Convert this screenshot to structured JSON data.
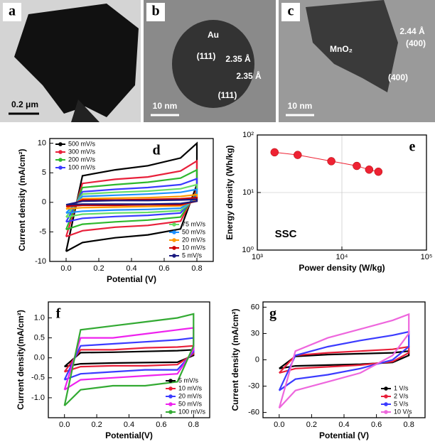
{
  "images": [
    {
      "label": "a",
      "scale_bar": "0.2 μm"
    },
    {
      "label": "b",
      "annotations": [
        "Au",
        "(111)",
        "2.35 Å",
        "2.35 Å",
        "(111)"
      ],
      "scale_bar": "10 nm"
    },
    {
      "label": "c",
      "annotations": [
        "MnO₂",
        "2.44 Å",
        "(400)",
        "(400)"
      ],
      "scale_bar": "10 nm"
    }
  ],
  "chart_data": [
    {
      "type": "line",
      "panel_label": "d",
      "xlabel": "Potential (V)",
      "ylabel": "Current density (mA/cm²)",
      "x": [
        0,
        0.1,
        0.3,
        0.5,
        0.7,
        0.8,
        0.8,
        0.7,
        0.5,
        0.3,
        0.1,
        0
      ],
      "xlim": [
        -0.1,
        0.9
      ],
      "xticks": [
        {
          "value": 0,
          "label": "0.0"
        },
        0.2,
        0.4,
        0.6,
        0.8
      ],
      "ylim": [
        -10,
        10.8
      ],
      "yticks": [
        -10,
        -5,
        0,
        5,
        10
      ],
      "series": [
        {
          "name": "500 mV/s",
          "color": "#000000",
          "legend": "upper left",
          "values": [
            -8.3,
            4.5,
            5.5,
            6.2,
            7.5,
            10,
            3,
            -4.5,
            -5.5,
            -6,
            -6.8,
            -8.3
          ]
        },
        {
          "name": "300 mV/s",
          "color": "#e8203a",
          "legend": "upper left",
          "values": [
            -5.8,
            3.2,
            3.9,
            4.3,
            5.3,
            7,
            2.1,
            -3.2,
            -3.9,
            -4.2,
            -4.8,
            -5.8
          ]
        },
        {
          "name": "200 mV/s",
          "color": "#2db82d",
          "legend": "upper left",
          "values": [
            -4.6,
            2.5,
            3,
            3.4,
            4.1,
            5.5,
            1.7,
            -2.5,
            -3,
            -3.3,
            -3.7,
            -4.6
          ]
        },
        {
          "name": "100 mV/s",
          "color": "#3b3bff",
          "legend": "upper left",
          "values": [
            -3.3,
            1.8,
            2.2,
            2.5,
            3,
            4,
            1.2,
            -1.8,
            -2.2,
            -2.4,
            -2.7,
            -3.3
          ]
        },
        {
          "name": "75 mV/s",
          "color": "#66dd66",
          "legend": "lower right",
          "values": [
            -2.5,
            1.4,
            1.7,
            1.9,
            2.3,
            3,
            0.9,
            -1.4,
            -1.7,
            -1.8,
            -2,
            -2.5
          ]
        },
        {
          "name": "50 mV/s",
          "color": "#1e90ff",
          "legend": "lower right",
          "values": [
            -1.8,
            1,
            1.2,
            1.4,
            1.7,
            2.2,
            0.7,
            -1,
            -1.2,
            -1.3,
            -1.5,
            -1.8
          ]
        },
        {
          "name": "20 mV/s",
          "color": "#ff9900",
          "legend": "lower right",
          "values": [
            -1.1,
            0.6,
            0.7,
            0.8,
            1,
            1.3,
            0.4,
            -0.6,
            -0.7,
            -0.8,
            -0.9,
            -1.1
          ]
        },
        {
          "name": "10 mV/s",
          "color": "#cc0000",
          "legend": "lower right",
          "values": [
            -0.7,
            0.4,
            0.4,
            0.5,
            0.6,
            0.8,
            0.2,
            -0.4,
            -0.4,
            -0.5,
            -0.5,
            -0.7
          ]
        },
        {
          "name": "5 mV/s",
          "color": "#1a1a80",
          "legend": "lower right",
          "values": [
            -0.4,
            0.2,
            0.3,
            0.3,
            0.4,
            0.5,
            0.2,
            -0.2,
            -0.3,
            -0.3,
            -0.3,
            -0.4
          ]
        }
      ]
    },
    {
      "type": "line",
      "panel_label": "e",
      "xlabel": "Power density (W/kg)",
      "ylabel": "Energy density (Wh/kg)",
      "annotation": "SSC",
      "annotation_color": "#cc3399",
      "log": true,
      "grid": true,
      "markers": true,
      "x": [
        1600,
        3000,
        7500,
        15000,
        21000,
        27000
      ],
      "xlim": [
        1000,
        100000
      ],
      "xticks": [
        {
          "value": 1000,
          "label": "10³"
        },
        {
          "value": 10000,
          "label": "10⁴"
        },
        {
          "value": 100000,
          "label": "10⁵"
        }
      ],
      "ylim": [
        1,
        100
      ],
      "yticks": [
        {
          "value": 1,
          "label": "10⁰"
        },
        {
          "value": 10,
          "label": "10¹"
        },
        {
          "value": 100,
          "label": "10²"
        }
      ],
      "series": [
        {
          "color": "#ee2233",
          "values": [
            50,
            45,
            35,
            29,
            25,
            23
          ]
        }
      ]
    },
    {
      "type": "line",
      "panel_label": "f",
      "xlabel": "Potential(V)",
      "ylabel": "Current density(mA/cm²)",
      "x": [
        0,
        0.1,
        0.3,
        0.5,
        0.7,
        0.8,
        0.8,
        0.7,
        0.5,
        0.3,
        0.1,
        0
      ],
      "xlim": [
        -0.1,
        0.9
      ],
      "xticks": [
        {
          "value": 0,
          "label": "0.0"
        },
        0.2,
        0.4,
        0.6,
        0.8
      ],
      "ylim": [
        -1.5,
        1.4
      ],
      "yticks": [
        {
          "value": -1,
          "label": "-1.0"
        },
        -0.5,
        {
          "value": 0,
          "label": "0.0"
        },
        0.5,
        {
          "value": 1,
          "label": "1.0"
        }
      ],
      "series": [
        {
          "name": "5 mV/s",
          "color": "#000000",
          "legend": "lower right",
          "values": [
            -0.22,
            0.13,
            0.14,
            0.16,
            0.18,
            0.2,
            0.06,
            -0.11,
            -0.12,
            -0.13,
            -0.15,
            -0.22
          ]
        },
        {
          "name": "10 mV/s",
          "color": "#e8203a",
          "legend": "lower right",
          "values": [
            -0.35,
            0.2,
            0.2,
            0.25,
            0.27,
            0.3,
            0.1,
            -0.17,
            -0.2,
            -0.2,
            -0.22,
            -0.35
          ]
        },
        {
          "name": "20 mV/s",
          "color": "#3b3bff",
          "legend": "lower right",
          "values": [
            -0.55,
            0.3,
            0.35,
            0.4,
            0.45,
            0.5,
            0.15,
            -0.3,
            -0.3,
            -0.35,
            -0.4,
            -0.55
          ]
        },
        {
          "name": "50 mV/s",
          "color": "#ee22ee",
          "legend": "lower right",
          "values": [
            -0.8,
            0.5,
            0.5,
            0.6,
            0.7,
            0.75,
            0.2,
            -0.4,
            -0.45,
            -0.5,
            -0.55,
            -0.8
          ]
        },
        {
          "name": "100 mV/s",
          "color": "#33aa33",
          "legend": "lower right",
          "values": [
            -1.2,
            0.7,
            0.8,
            0.9,
            1,
            1.1,
            0.3,
            -0.6,
            -0.7,
            -0.7,
            -0.8,
            -1.2
          ]
        }
      ]
    },
    {
      "type": "line",
      "panel_label": "g",
      "xlabel": "Potential (V)",
      "ylabel": "Current density (mA/cm²)",
      "x": [
        0,
        0.1,
        0.3,
        0.5,
        0.7,
        0.8,
        0.8,
        0.7,
        0.5,
        0.3,
        0.1,
        0
      ],
      "xlim": [
        -0.1,
        0.9
      ],
      "xticks": [
        {
          "value": 0,
          "label": "0.0"
        },
        0.2,
        0.4,
        0.6,
        0.8
      ],
      "ylim": [
        -66,
        66
      ],
      "yticks": [
        -60,
        -30,
        0,
        30,
        60
      ],
      "series": [
        {
          "name": "1 V/s",
          "color": "#000000",
          "legend": "lower right",
          "values": [
            -10,
            4,
            6,
            7,
            8,
            10,
            5,
            -3,
            -5,
            -6,
            -7,
            -10
          ]
        },
        {
          "name": "2 V/s",
          "color": "#e8203a",
          "legend": "lower right",
          "values": [
            -15,
            5,
            8,
            10,
            12,
            15,
            8,
            -2,
            -6,
            -8,
            -10,
            -15
          ]
        },
        {
          "name": "5 V/s",
          "color": "#3b3bff",
          "legend": "lower right",
          "values": [
            -35,
            5,
            15,
            22,
            28,
            32,
            15,
            0,
            -10,
            -17,
            -22,
            -35
          ]
        },
        {
          "name": "10 V/s",
          "color": "#ee66dd",
          "legend": "lower right",
          "values": [
            -55,
            10,
            25,
            35,
            45,
            52,
            30,
            5,
            -15,
            -25,
            -35,
            -55
          ]
        }
      ]
    }
  ]
}
